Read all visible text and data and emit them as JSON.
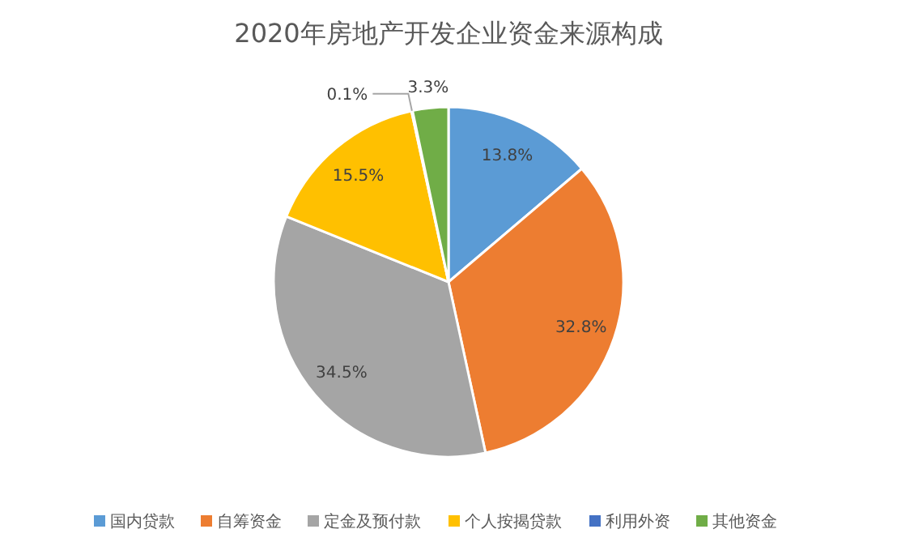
{
  "chart_data": {
    "type": "pie",
    "title": "2020年房地产开发企业资金来源构成",
    "categories": [
      "国内贷款",
      "自筹资金",
      "定金及预付款",
      "个人按揭贷款",
      "利用外资",
      "其他资金"
    ],
    "values": [
      13.8,
      32.8,
      34.5,
      15.5,
      0.1,
      3.3
    ],
    "colors": [
      "#5b9bd5",
      "#ed7d31",
      "#a5a5a5",
      "#ffc000",
      "#4472c4",
      "#70ad47"
    ],
    "value_labels": [
      "13.8%",
      "32.8%",
      "34.5%",
      "15.5%",
      "0.1%",
      "3.3%"
    ],
    "legend": "bottom"
  }
}
